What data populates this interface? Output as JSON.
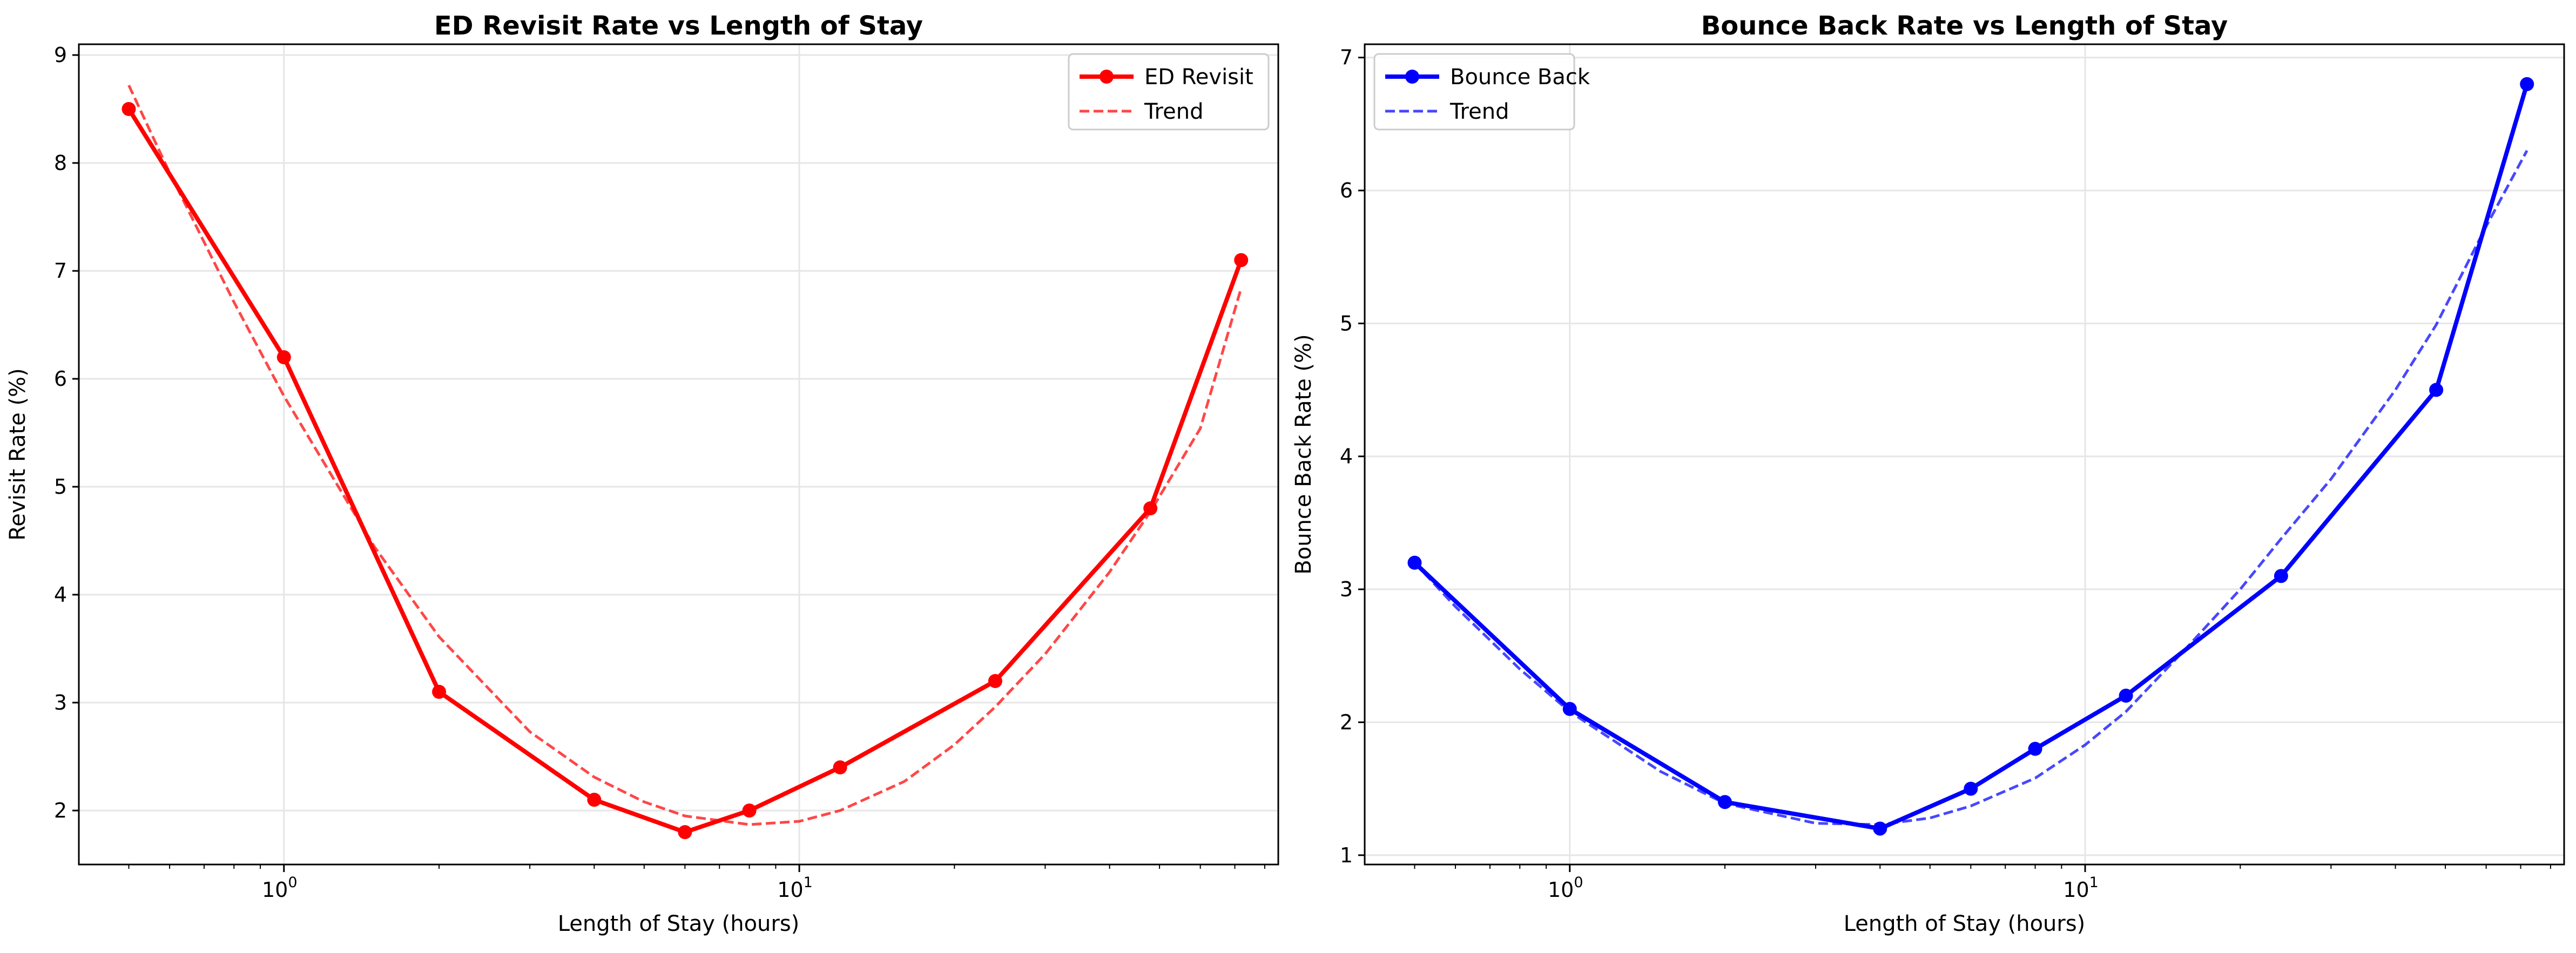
{
  "chart_data": [
    {
      "type": "line",
      "title": "ED Revisit Rate vs Length of Stay",
      "xlabel": "Length of Stay (hours)",
      "ylabel": "Revisit Rate (%)",
      "xscale": "log",
      "xlim": [
        0.4,
        85
      ],
      "ylim": [
        1.5,
        9.1
      ],
      "yticks": [
        "2",
        "3",
        "4",
        "5",
        "6",
        "7",
        "8",
        "9"
      ],
      "xticks": [
        {
          "base": "10",
          "exp": "0"
        },
        {
          "base": "10",
          "exp": "1"
        }
      ],
      "grid": true,
      "legend_position": "upper right",
      "series": [
        {
          "name": "ED Revisit",
          "style": "solid-markers",
          "color": "#ff0000",
          "x": [
            0.5,
            1,
            2,
            4,
            6,
            8,
            12,
            24,
            48,
            72
          ],
          "y": [
            8.5,
            6.2,
            3.1,
            2.1,
            1.8,
            2.0,
            2.4,
            3.2,
            4.8,
            7.1
          ]
        },
        {
          "name": "Trend",
          "style": "dashed",
          "color": "#ff0000",
          "x": [
            0.5,
            0.6,
            0.8,
            1,
            1.5,
            2,
            3,
            4,
            5,
            6,
            8,
            10,
            12,
            16,
            20,
            24,
            30,
            40,
            48,
            60,
            72
          ],
          "y": [
            8.72,
            7.91,
            6.71,
            5.84,
            4.44,
            3.61,
            2.73,
            2.31,
            2.08,
            1.95,
            1.87,
            1.9,
            2.0,
            2.27,
            2.61,
            2.96,
            3.45,
            4.21,
            4.77,
            5.54,
            6.84
          ]
        }
      ]
    },
    {
      "type": "line",
      "title": "Bounce Back Rate vs Length of Stay",
      "xlabel": "Length of Stay (hours)",
      "ylabel": "Bounce Back Rate (%)",
      "xscale": "log",
      "xlim": [
        0.4,
        85
      ],
      "ylim": [
        0.93,
        7.1
      ],
      "yticks": [
        "1",
        "2",
        "3",
        "4",
        "5",
        "6",
        "7"
      ],
      "xticks": [
        {
          "base": "10",
          "exp": "0"
        },
        {
          "base": "10",
          "exp": "1"
        }
      ],
      "grid": true,
      "legend_position": "upper left",
      "series": [
        {
          "name": "Bounce Back",
          "style": "solid-markers",
          "color": "#0000ff",
          "x": [
            0.5,
            1,
            2,
            4,
            6,
            8,
            12,
            24,
            48,
            72
          ],
          "y": [
            3.2,
            2.1,
            1.4,
            1.2,
            1.5,
            1.8,
            2.2,
            3.1,
            4.5,
            6.8
          ]
        },
        {
          "name": "Trend",
          "style": "dashed",
          "color": "#0000ff",
          "x": [
            0.5,
            0.6,
            0.8,
            1,
            1.5,
            2,
            3,
            4,
            5,
            6,
            8,
            10,
            12,
            16,
            20,
            24,
            30,
            40,
            48,
            60,
            72
          ],
          "y": [
            3.2,
            2.87,
            2.4,
            2.08,
            1.63,
            1.39,
            1.24,
            1.23,
            1.28,
            1.37,
            1.58,
            1.83,
            2.08,
            2.59,
            3.0,
            3.38,
            3.83,
            4.5,
            4.99,
            5.73,
            6.3
          ]
        }
      ]
    }
  ]
}
